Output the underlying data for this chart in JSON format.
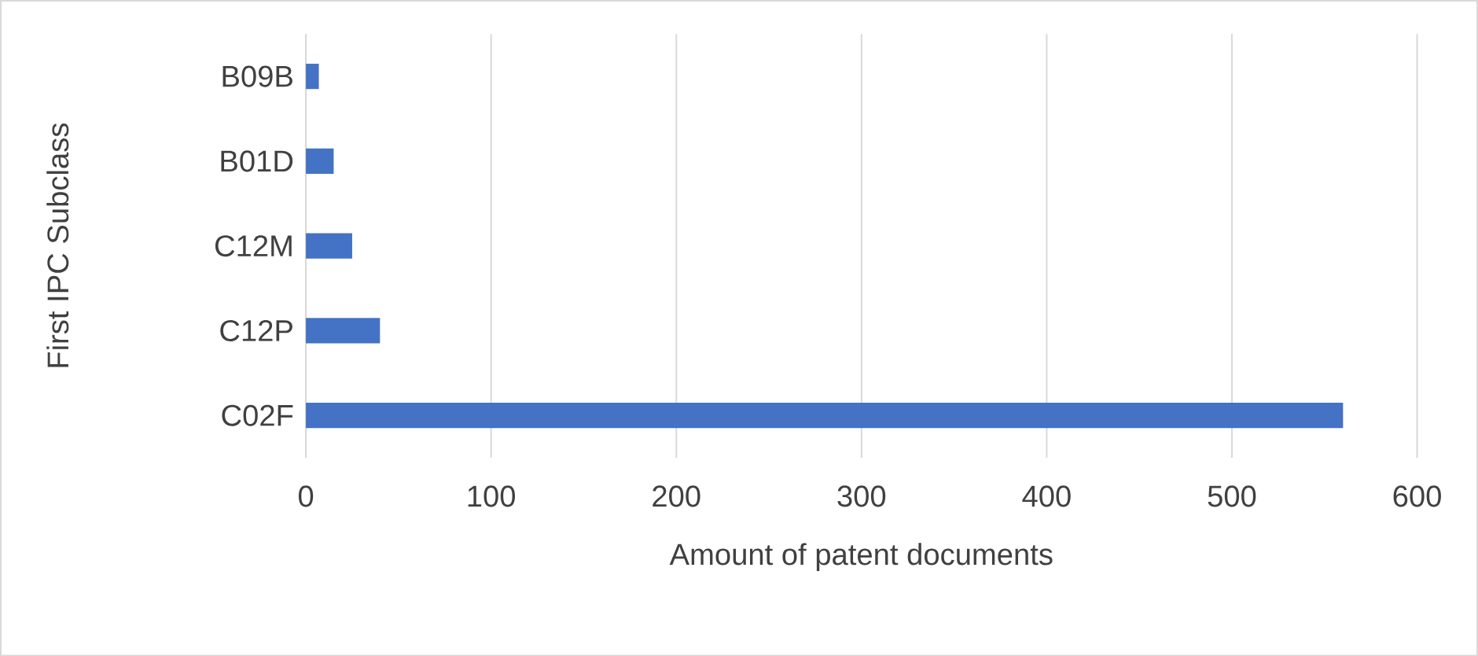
{
  "chart_data": {
    "type": "bar",
    "orientation": "horizontal",
    "xlabel": "Amount of patent documents",
    "ylabel": "First IPC Subclass",
    "categories": [
      "B09B",
      "B01D",
      "C12M",
      "C12P",
      "C02F"
    ],
    "values": [
      7,
      15,
      25,
      40,
      560
    ],
    "color": "#4472c4",
    "xlim": [
      0,
      600
    ],
    "xticks": [
      0,
      100,
      200,
      300,
      400,
      500,
      600
    ],
    "grid": "x"
  }
}
